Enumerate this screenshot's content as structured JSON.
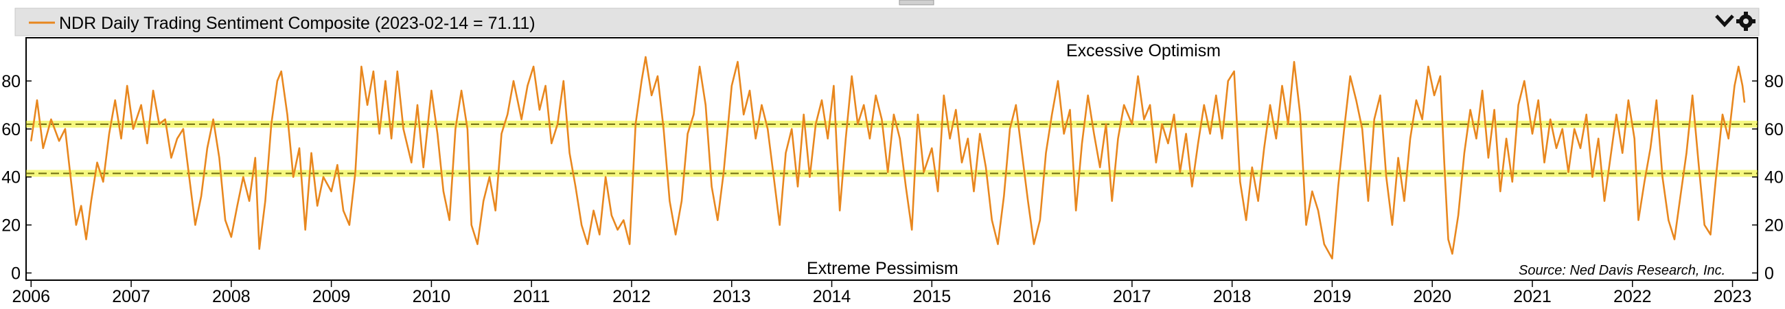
{
  "legend": {
    "label": "NDR Daily Trading Sentiment Composite (2023-02-14 = 71.11)"
  },
  "toolbar": {
    "collapse_icon": "chevron-down-icon",
    "settings_icon": "gear-icon"
  },
  "annotations": {
    "top": "Excessive Optimism",
    "bottom": "Extreme Pessimism",
    "source": "Source:   Ned Davis Research, Inc."
  },
  "colors": {
    "series": "#e8871e",
    "band": "#eef218",
    "legend_bg": "#e2e2e2"
  },
  "chart_data": {
    "type": "line",
    "title": "",
    "xlabel": "",
    "ylabel": "",
    "xlim": [
      2005.95,
      2023.25
    ],
    "ylim": [
      -3,
      98
    ],
    "y_ticks": [
      0,
      20,
      40,
      60,
      80
    ],
    "y_tick_labels": [
      "0",
      "20",
      "40",
      "60",
      "80"
    ],
    "x_ticks": [
      2006,
      2007,
      2008,
      2009,
      2010,
      2011,
      2012,
      2013,
      2014,
      2015,
      2016,
      2017,
      2018,
      2019,
      2020,
      2021,
      2022,
      2023
    ],
    "x_tick_labels": [
      "2006",
      "2007",
      "2008",
      "2009",
      "2010",
      "2011",
      "2012",
      "2013",
      "2014",
      "2015",
      "2016",
      "2017",
      "2018",
      "2019",
      "2020",
      "2021",
      "2022",
      "2023"
    ],
    "reference_lines": [
      62,
      41.5
    ],
    "grid": false,
    "legend_position": "top-left",
    "series": [
      {
        "name": "NDR Daily Trading Sentiment Composite",
        "points": [
          [
            2006.0,
            55
          ],
          [
            2006.06,
            72
          ],
          [
            2006.12,
            52
          ],
          [
            2006.2,
            64
          ],
          [
            2006.28,
            55
          ],
          [
            2006.34,
            60
          ],
          [
            2006.4,
            38
          ],
          [
            2006.45,
            20
          ],
          [
            2006.5,
            28
          ],
          [
            2006.55,
            14
          ],
          [
            2006.6,
            30
          ],
          [
            2006.66,
            46
          ],
          [
            2006.72,
            38
          ],
          [
            2006.78,
            58
          ],
          [
            2006.84,
            72
          ],
          [
            2006.9,
            56
          ],
          [
            2006.96,
            78
          ],
          [
            2007.02,
            60
          ],
          [
            2007.1,
            70
          ],
          [
            2007.16,
            54
          ],
          [
            2007.22,
            76
          ],
          [
            2007.28,
            62
          ],
          [
            2007.34,
            64
          ],
          [
            2007.4,
            48
          ],
          [
            2007.46,
            56
          ],
          [
            2007.52,
            60
          ],
          [
            2007.58,
            40
          ],
          [
            2007.64,
            20
          ],
          [
            2007.7,
            32
          ],
          [
            2007.76,
            52
          ],
          [
            2007.82,
            64
          ],
          [
            2007.88,
            48
          ],
          [
            2007.94,
            22
          ],
          [
            2008.0,
            15
          ],
          [
            2008.06,
            28
          ],
          [
            2008.12,
            40
          ],
          [
            2008.18,
            30
          ],
          [
            2008.24,
            48
          ],
          [
            2008.28,
            10
          ],
          [
            2008.34,
            30
          ],
          [
            2008.4,
            62
          ],
          [
            2008.46,
            80
          ],
          [
            2008.5,
            84
          ],
          [
            2008.56,
            66
          ],
          [
            2008.62,
            40
          ],
          [
            2008.68,
            52
          ],
          [
            2008.74,
            18
          ],
          [
            2008.8,
            50
          ],
          [
            2008.86,
            28
          ],
          [
            2008.92,
            40
          ],
          [
            2009.0,
            34
          ],
          [
            2009.06,
            45
          ],
          [
            2009.12,
            26
          ],
          [
            2009.18,
            20
          ],
          [
            2009.24,
            42
          ],
          [
            2009.3,
            86
          ],
          [
            2009.36,
            70
          ],
          [
            2009.42,
            84
          ],
          [
            2009.48,
            58
          ],
          [
            2009.54,
            80
          ],
          [
            2009.6,
            56
          ],
          [
            2009.66,
            84
          ],
          [
            2009.72,
            60
          ],
          [
            2009.8,
            46
          ],
          [
            2009.86,
            70
          ],
          [
            2009.92,
            44
          ],
          [
            2010.0,
            76
          ],
          [
            2010.06,
            58
          ],
          [
            2010.12,
            34
          ],
          [
            2010.18,
            22
          ],
          [
            2010.24,
            60
          ],
          [
            2010.3,
            76
          ],
          [
            2010.36,
            60
          ],
          [
            2010.4,
            20
          ],
          [
            2010.46,
            12
          ],
          [
            2010.52,
            30
          ],
          [
            2010.58,
            40
          ],
          [
            2010.64,
            26
          ],
          [
            2010.7,
            58
          ],
          [
            2010.76,
            66
          ],
          [
            2010.82,
            80
          ],
          [
            2010.9,
            64
          ],
          [
            2010.96,
            78
          ],
          [
            2011.02,
            86
          ],
          [
            2011.08,
            68
          ],
          [
            2011.14,
            78
          ],
          [
            2011.2,
            54
          ],
          [
            2011.26,
            62
          ],
          [
            2011.32,
            80
          ],
          [
            2011.38,
            50
          ],
          [
            2011.44,
            36
          ],
          [
            2011.5,
            20
          ],
          [
            2011.56,
            12
          ],
          [
            2011.62,
            26
          ],
          [
            2011.68,
            16
          ],
          [
            2011.74,
            40
          ],
          [
            2011.8,
            24
          ],
          [
            2011.86,
            18
          ],
          [
            2011.92,
            22
          ],
          [
            2011.98,
            12
          ],
          [
            2012.04,
            62
          ],
          [
            2012.1,
            80
          ],
          [
            2012.14,
            90
          ],
          [
            2012.2,
            74
          ],
          [
            2012.26,
            82
          ],
          [
            2012.32,
            60
          ],
          [
            2012.38,
            30
          ],
          [
            2012.44,
            16
          ],
          [
            2012.5,
            30
          ],
          [
            2012.56,
            58
          ],
          [
            2012.62,
            66
          ],
          [
            2012.68,
            86
          ],
          [
            2012.74,
            70
          ],
          [
            2012.8,
            36
          ],
          [
            2012.86,
            22
          ],
          [
            2012.92,
            42
          ],
          [
            2013.0,
            78
          ],
          [
            2013.06,
            88
          ],
          [
            2013.12,
            66
          ],
          [
            2013.18,
            76
          ],
          [
            2013.24,
            56
          ],
          [
            2013.3,
            70
          ],
          [
            2013.36,
            60
          ],
          [
            2013.42,
            40
          ],
          [
            2013.48,
            20
          ],
          [
            2013.54,
            50
          ],
          [
            2013.6,
            60
          ],
          [
            2013.66,
            36
          ],
          [
            2013.72,
            66
          ],
          [
            2013.78,
            40
          ],
          [
            2013.84,
            62
          ],
          [
            2013.9,
            72
          ],
          [
            2013.96,
            56
          ],
          [
            2014.02,
            78
          ],
          [
            2014.08,
            26
          ],
          [
            2014.14,
            56
          ],
          [
            2014.2,
            82
          ],
          [
            2014.26,
            62
          ],
          [
            2014.32,
            70
          ],
          [
            2014.38,
            56
          ],
          [
            2014.44,
            74
          ],
          [
            2014.5,
            64
          ],
          [
            2014.56,
            42
          ],
          [
            2014.62,
            66
          ],
          [
            2014.68,
            56
          ],
          [
            2014.74,
            36
          ],
          [
            2014.8,
            18
          ],
          [
            2014.86,
            66
          ],
          [
            2014.92,
            42
          ],
          [
            2015.0,
            52
          ],
          [
            2015.06,
            34
          ],
          [
            2015.12,
            74
          ],
          [
            2015.18,
            56
          ],
          [
            2015.24,
            68
          ],
          [
            2015.3,
            46
          ],
          [
            2015.36,
            56
          ],
          [
            2015.42,
            34
          ],
          [
            2015.48,
            58
          ],
          [
            2015.54,
            44
          ],
          [
            2015.6,
            22
          ],
          [
            2015.66,
            12
          ],
          [
            2015.72,
            32
          ],
          [
            2015.78,
            60
          ],
          [
            2015.84,
            70
          ],
          [
            2015.9,
            50
          ],
          [
            2015.96,
            30
          ],
          [
            2016.02,
            12
          ],
          [
            2016.08,
            22
          ],
          [
            2016.14,
            50
          ],
          [
            2016.2,
            66
          ],
          [
            2016.26,
            80
          ],
          [
            2016.32,
            58
          ],
          [
            2016.38,
            68
          ],
          [
            2016.44,
            26
          ],
          [
            2016.5,
            54
          ],
          [
            2016.56,
            74
          ],
          [
            2016.62,
            58
          ],
          [
            2016.68,
            44
          ],
          [
            2016.74,
            62
          ],
          [
            2016.8,
            30
          ],
          [
            2016.86,
            56
          ],
          [
            2016.92,
            70
          ],
          [
            2017.0,
            62
          ],
          [
            2017.06,
            82
          ],
          [
            2017.12,
            64
          ],
          [
            2017.18,
            70
          ],
          [
            2017.24,
            46
          ],
          [
            2017.3,
            62
          ],
          [
            2017.36,
            54
          ],
          [
            2017.42,
            66
          ],
          [
            2017.48,
            42
          ],
          [
            2017.54,
            58
          ],
          [
            2017.6,
            36
          ],
          [
            2017.66,
            54
          ],
          [
            2017.72,
            70
          ],
          [
            2017.78,
            58
          ],
          [
            2017.84,
            74
          ],
          [
            2017.9,
            56
          ],
          [
            2017.96,
            80
          ],
          [
            2018.02,
            84
          ],
          [
            2018.08,
            38
          ],
          [
            2018.14,
            22
          ],
          [
            2018.2,
            44
          ],
          [
            2018.26,
            30
          ],
          [
            2018.32,
            52
          ],
          [
            2018.38,
            70
          ],
          [
            2018.44,
            56
          ],
          [
            2018.5,
            78
          ],
          [
            2018.56,
            62
          ],
          [
            2018.62,
            88
          ],
          [
            2018.68,
            66
          ],
          [
            2018.74,
            20
          ],
          [
            2018.8,
            34
          ],
          [
            2018.86,
            26
          ],
          [
            2018.92,
            12
          ],
          [
            2019.0,
            6
          ],
          [
            2019.06,
            36
          ],
          [
            2019.12,
            60
          ],
          [
            2019.18,
            82
          ],
          [
            2019.24,
            72
          ],
          [
            2019.3,
            60
          ],
          [
            2019.36,
            30
          ],
          [
            2019.42,
            64
          ],
          [
            2019.48,
            74
          ],
          [
            2019.54,
            40
          ],
          [
            2019.6,
            20
          ],
          [
            2019.66,
            48
          ],
          [
            2019.72,
            30
          ],
          [
            2019.78,
            56
          ],
          [
            2019.84,
            72
          ],
          [
            2019.9,
            64
          ],
          [
            2019.96,
            86
          ],
          [
            2020.02,
            74
          ],
          [
            2020.08,
            82
          ],
          [
            2020.12,
            46
          ],
          [
            2020.16,
            14
          ],
          [
            2020.2,
            8
          ],
          [
            2020.26,
            24
          ],
          [
            2020.32,
            50
          ],
          [
            2020.38,
            68
          ],
          [
            2020.44,
            56
          ],
          [
            2020.5,
            76
          ],
          [
            2020.56,
            48
          ],
          [
            2020.62,
            68
          ],
          [
            2020.68,
            34
          ],
          [
            2020.74,
            56
          ],
          [
            2020.8,
            38
          ],
          [
            2020.86,
            70
          ],
          [
            2020.92,
            80
          ],
          [
            2021.0,
            58
          ],
          [
            2021.06,
            72
          ],
          [
            2021.12,
            46
          ],
          [
            2021.18,
            64
          ],
          [
            2021.24,
            52
          ],
          [
            2021.3,
            60
          ],
          [
            2021.36,
            42
          ],
          [
            2021.42,
            60
          ],
          [
            2021.48,
            52
          ],
          [
            2021.54,
            66
          ],
          [
            2021.6,
            40
          ],
          [
            2021.66,
            56
          ],
          [
            2021.72,
            30
          ],
          [
            2021.78,
            48
          ],
          [
            2021.84,
            66
          ],
          [
            2021.9,
            50
          ],
          [
            2021.96,
            72
          ],
          [
            2022.02,
            56
          ],
          [
            2022.06,
            22
          ],
          [
            2022.12,
            38
          ],
          [
            2022.18,
            52
          ],
          [
            2022.24,
            72
          ],
          [
            2022.3,
            40
          ],
          [
            2022.36,
            22
          ],
          [
            2022.42,
            14
          ],
          [
            2022.48,
            32
          ],
          [
            2022.54,
            50
          ],
          [
            2022.6,
            74
          ],
          [
            2022.66,
            46
          ],
          [
            2022.72,
            20
          ],
          [
            2022.78,
            16
          ],
          [
            2022.84,
            42
          ],
          [
            2022.9,
            66
          ],
          [
            2022.96,
            56
          ],
          [
            2023.02,
            78
          ],
          [
            2023.06,
            86
          ],
          [
            2023.1,
            78
          ],
          [
            2023.12,
            71.11
          ]
        ]
      }
    ]
  }
}
